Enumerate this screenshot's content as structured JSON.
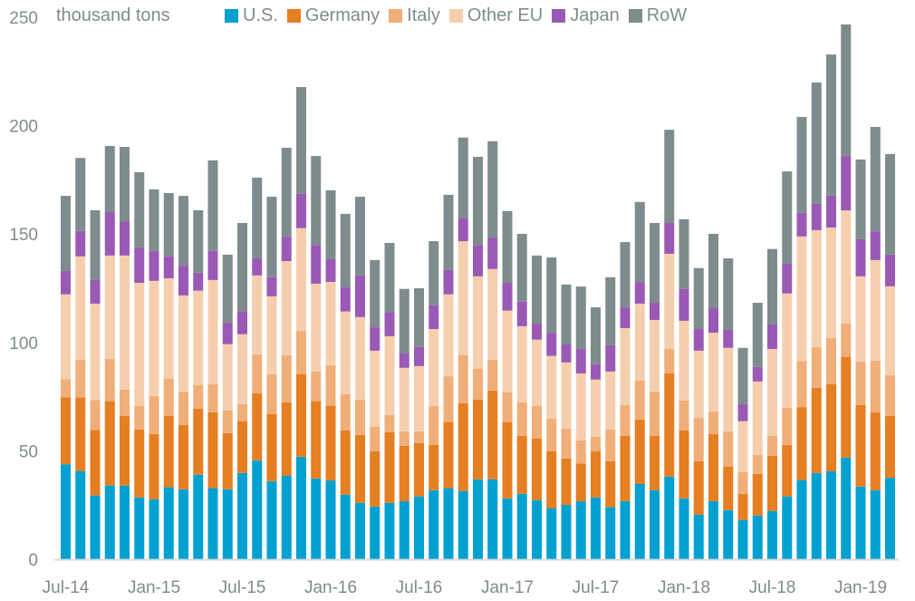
{
  "chart_data": {
    "type": "bar",
    "stacked": true,
    "title": "",
    "unit_label": "thousand tons",
    "xlabel": "",
    "ylabel": "thousand tons",
    "ylim": [
      0,
      250
    ],
    "yticks": [
      0,
      50,
      100,
      150,
      200,
      250
    ],
    "grid": false,
    "legend_position": "top",
    "xtick_labels": [
      "Jul-14",
      "Jan-15",
      "Jul-15",
      "Jan-16",
      "Jul-16",
      "Jan-17",
      "Jul-17",
      "Jan-18",
      "Jul-18",
      "Jan-19"
    ],
    "categories": [
      "Jul-14",
      "Aug-14",
      "Sep-14",
      "Oct-14",
      "Nov-14",
      "Dec-14",
      "Jan-15",
      "Feb-15",
      "Mar-15",
      "Apr-15",
      "May-15",
      "Jun-15",
      "Jul-15",
      "Aug-15",
      "Sep-15",
      "Oct-15",
      "Nov-15",
      "Dec-15",
      "Jan-16",
      "Feb-16",
      "Mar-16",
      "Apr-16",
      "May-16",
      "Jun-16",
      "Jul-16",
      "Aug-16",
      "Sep-16",
      "Oct-16",
      "Nov-16",
      "Dec-16",
      "Jan-17",
      "Feb-17",
      "Mar-17",
      "Apr-17",
      "May-17",
      "Jun-17",
      "Jul-17",
      "Aug-17",
      "Sep-17",
      "Oct-17",
      "Nov-17",
      "Dec-17",
      "Jan-18",
      "Feb-18",
      "Mar-18",
      "Apr-18",
      "May-18",
      "Jun-18",
      "Jul-18",
      "Aug-18",
      "Sep-18",
      "Oct-18",
      "Nov-18",
      "Dec-18",
      "Jan-19",
      "Feb-19",
      "Mar-19"
    ],
    "series": [
      {
        "name": "U.S.",
        "color": "#00a0d0",
        "values": [
          43.8,
          40.7,
          29.4,
          34.0,
          34.0,
          28.5,
          27.7,
          33.2,
          32.3,
          39.0,
          32.8,
          32.3,
          39.8,
          45.6,
          36.0,
          38.6,
          47.3,
          37.3,
          36.4,
          29.8,
          26.0,
          24.3,
          26.0,
          26.8,
          29.0,
          31.9,
          32.8,
          31.5,
          36.9,
          36.9,
          28.1,
          30.2,
          27.3,
          23.6,
          25.1,
          26.8,
          28.5,
          24.0,
          26.8,
          34.7,
          31.9,
          38.1,
          28.1,
          20.6,
          26.8,
          22.7,
          18.1,
          20.2,
          22.3,
          29.0,
          36.5,
          39.8,
          40.6,
          46.9,
          33.5,
          31.9,
          37.6
        ]
      },
      {
        "name": "Germany",
        "color": "#e67e22",
        "values": [
          30.8,
          33.9,
          30.2,
          38.9,
          32.1,
          31.4,
          30.1,
          32.9,
          29.7,
          30.5,
          35.0,
          25.9,
          23.9,
          30.9,
          30.9,
          33.8,
          38.0,
          35.6,
          34.4,
          29.7,
          31.3,
          25.6,
          32.6,
          25.6,
          24.6,
          20.9,
          30.5,
          40.5,
          36.8,
          40.9,
          35.2,
          26.7,
          28.3,
          26.3,
          21.4,
          17.3,
          21.4,
          21.2,
          30.1,
          29.7,
          25.0,
          47.6,
          31.4,
          24.6,
          31.0,
          20.1,
          12.1,
          19.2,
          25.4,
          23.8,
          33.7,
          39.3,
          40.2,
          46.5,
          37.7,
          35.8,
          28.5
        ]
      },
      {
        "name": "Italy",
        "color": "#f0ae78",
        "values": [
          8.4,
          17.5,
          13.8,
          19.6,
          12.1,
          10.9,
          17.5,
          17.2,
          15.4,
          10.9,
          13.0,
          10.4,
          7.9,
          18.0,
          18.4,
          21.7,
          20.0,
          13.7,
          18.7,
          16.6,
          16.4,
          11.2,
          7.9,
          6.6,
          5.4,
          18.0,
          21.1,
          22.2,
          14.1,
          14.3,
          13.7,
          15.5,
          15.2,
          14.9,
          13.8,
          10.7,
          6.6,
          14.7,
          14.3,
          18.1,
          20.5,
          11.3,
          13.8,
          20.0,
          10.4,
          16.2,
          10.0,
          8.8,
          9.2,
          17.1,
          21.2,
          18.7,
          21.3,
          15.3,
          20.0,
          23.9,
          18.8
        ]
      },
      {
        "name": "Other EU",
        "color": "#f5cfad",
        "values": [
          39.2,
          47.6,
          44.5,
          47.6,
          61.9,
          56.7,
          53.1,
          46.3,
          44.3,
          43.5,
          48.0,
          30.6,
          32.2,
          36.4,
          36.0,
          43.4,
          47.4,
          40.5,
          38.4,
          38.2,
          38.0,
          35.1,
          36.4,
          29.3,
          30.1,
          35.4,
          37.8,
          52.5,
          42.7,
          41.8,
          37.7,
          35.1,
          30.5,
          29.0,
          30.5,
          30.9,
          26.4,
          26.7,
          35.4,
          35.4,
          33.0,
          43.9,
          36.7,
          31.0,
          36.3,
          38.5,
          23.5,
          33.8,
          40.1,
          52.7,
          57.5,
          54.0,
          50.9,
          52.2,
          39.3,
          46.4,
          41.0
        ]
      },
      {
        "name": "Japan",
        "color": "#9b59b6",
        "values": [
          10.8,
          11.7,
          10.9,
          20.0,
          15.8,
          16.4,
          13.8,
          10.1,
          13.7,
          8.3,
          13.4,
          10.0,
          10.5,
          7.9,
          8.8,
          11.3,
          15.8,
          17.9,
          10.5,
          11.1,
          19.2,
          10.8,
          11.0,
          6.6,
          8.8,
          10.9,
          11.3,
          10.5,
          14.5,
          14.5,
          12.8,
          11.3,
          7.4,
          10.7,
          8.3,
          11.3,
          7.1,
          12.1,
          9.6,
          10.0,
          7.9,
          14.2,
          14.7,
          10.0,
          11.3,
          8.3,
          7.9,
          6.7,
          11.3,
          13.7,
          10.9,
          12.1,
          14.7,
          25.1,
          17.1,
          13.3,
          14.6
        ]
      },
      {
        "name": "RoW",
        "color": "#7f8c8d",
        "values": [
          34.6,
          33.7,
          32.2,
          30.5,
          34.3,
          34.6,
          28.4,
          29.2,
          32.2,
          28.8,
          41.8,
          31.3,
          40.8,
          37.2,
          37.1,
          41.0,
          49.3,
          41.0,
          31.8,
          33.9,
          36.3,
          31.0,
          32.0,
          29.8,
          27.1,
          29.6,
          34.6,
          37.3,
          40.6,
          44.4,
          33.1,
          31.3,
          31.4,
          34.7,
          27.6,
          28.8,
          26.2,
          31.4,
          30.1,
          36.9,
          36.8,
          43.0,
          32.1,
          28.1,
          34.3,
          33.0,
          25.9,
          29.6,
          34.8,
          42.6,
          44.2,
          56.0,
          65.1,
          60.7,
          36.8,
          48.1,
          46.4
        ]
      }
    ]
  }
}
